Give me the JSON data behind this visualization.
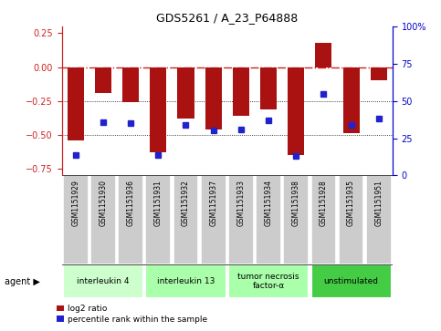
{
  "title": "GDS5261 / A_23_P64888",
  "samples": [
    "GSM1151929",
    "GSM1151930",
    "GSM1151936",
    "GSM1151931",
    "GSM1151932",
    "GSM1151937",
    "GSM1151933",
    "GSM1151934",
    "GSM1151938",
    "GSM1151928",
    "GSM1151935",
    "GSM1151951"
  ],
  "log2_ratios": [
    -0.54,
    -0.19,
    -0.26,
    -0.63,
    -0.38,
    -0.46,
    -0.36,
    -0.31,
    -0.65,
    0.18,
    -0.49,
    -0.1
  ],
  "percentile_ranks": [
    14,
    36,
    35,
    14,
    34,
    30,
    31,
    37,
    13,
    55,
    34,
    38
  ],
  "agents": [
    {
      "label": "interleukin 4",
      "start": 0,
      "end": 3
    },
    {
      "label": "interleukin 13",
      "start": 3,
      "end": 6
    },
    {
      "label": "tumor necrosis\nfactor-α",
      "start": 6,
      "end": 9
    },
    {
      "label": "unstimulated",
      "start": 9,
      "end": 12
    }
  ],
  "agent_colors": [
    "#ccffcc",
    "#aaffaa",
    "#aaffaa",
    "#44cc44"
  ],
  "ylim_left": [
    -0.8,
    0.3
  ],
  "ylim_right": [
    0,
    100
  ],
  "bar_color": "#aa1111",
  "dot_color": "#2222cc",
  "hline_color": "#cc2222",
  "bg_color": "#ffffff",
  "plot_bg": "#ffffff",
  "ylabel_left_color": "#cc2222",
  "ylabel_right_color": "#0000cc",
  "yticks_left": [
    -0.75,
    -0.5,
    -0.25,
    0,
    0.25
  ],
  "yticks_right": [
    0,
    25,
    50,
    75,
    100
  ],
  "sample_bg": "#cccccc",
  "legend_red": "log2 ratio",
  "legend_blue": "percentile rank within the sample"
}
